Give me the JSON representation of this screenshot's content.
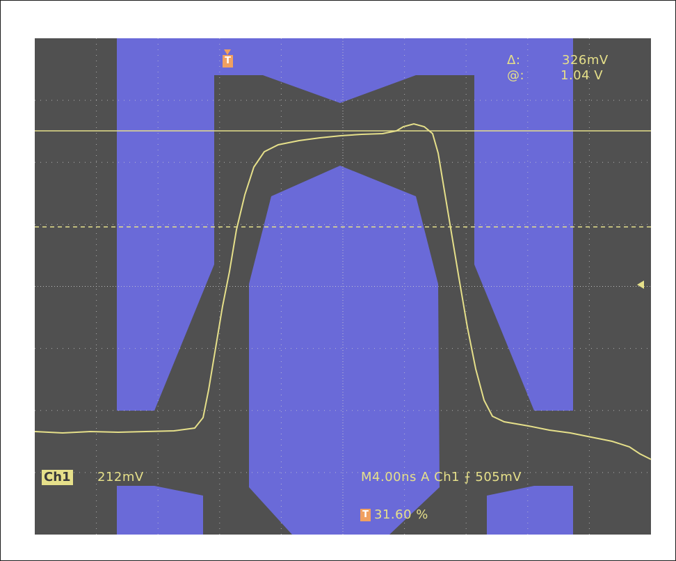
{
  "cursor_readout": {
    "delta_label": "Δ:",
    "delta_value": "326mV",
    "at_label": "@:",
    "at_value": "1.04 V"
  },
  "channel": {
    "badge": "Ch1",
    "scale": "212mV"
  },
  "timebase": {
    "text": "M4.00ns  A  Ch1  ⨍   505mV"
  },
  "trigger": {
    "marker": "T",
    "position": "31.60 %"
  },
  "colors": {
    "screen_bg": "#505050",
    "mask": "#6a6ad8",
    "trace": "#e6e08a",
    "grid": "#d0d0d0",
    "trigger_marker": "#f0a060"
  },
  "icons": {
    "trigger_marker": "trigger-t-icon",
    "ground_level": "level-arrow-icon"
  }
}
